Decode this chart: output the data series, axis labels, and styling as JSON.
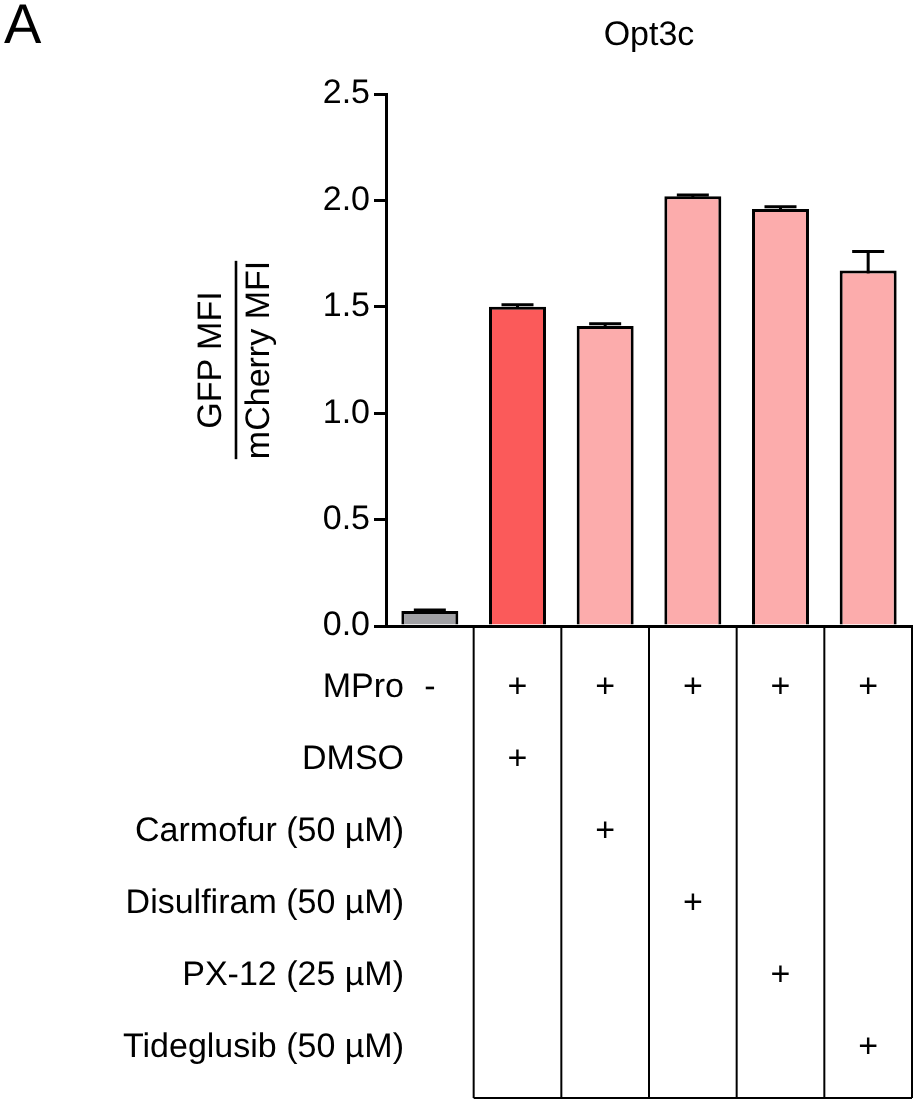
{
  "chart_data": {
    "type": "bar",
    "title": "Opt3c",
    "ylabel": "GFP MFI\nmCherry MFI",
    "categories": [
      null,
      null,
      null,
      null,
      null,
      null
    ],
    "values": [
      0.07,
      1.5,
      1.41,
      2.02,
      1.96,
      1.67
    ],
    "errors": [
      0.005,
      0.01,
      0.01,
      0.005,
      0.01,
      0.09
    ],
    "colors": [
      "#a0a0a4",
      "#fb5a5a",
      "#fcacac",
      "#fcacac",
      "#fcacac",
      "#fcacac"
    ],
    "ylim": [
      0,
      2.5
    ],
    "yticks": [
      {
        "value": 0,
        "label": "0.0"
      },
      {
        "value": 0.5,
        "label": "0.5"
      },
      {
        "value": 1,
        "label": "1.0"
      },
      {
        "value": 1.5,
        "label": "1.5"
      },
      {
        "value": 2,
        "label": "2.0"
      },
      {
        "value": 2.5,
        "label": "2.5"
      }
    ],
    "legend": false,
    "annotations": [
      "A",
      "MPro",
      "-",
      "+",
      "+",
      "+",
      "+",
      "+",
      "DMSO",
      null,
      "+",
      null,
      null,
      null,
      null,
      "Carmofur (50 µM)",
      null,
      null,
      "+",
      null,
      null,
      null,
      "Disulfiram (50 µM)",
      null,
      null,
      null,
      "+",
      null,
      null,
      "PX-12 (25 µM)",
      null,
      null,
      null,
      null,
      "+",
      null,
      "Tideglusib (50 µM)",
      null,
      null,
      null,
      null,
      null,
      "+"
    ]
  }
}
